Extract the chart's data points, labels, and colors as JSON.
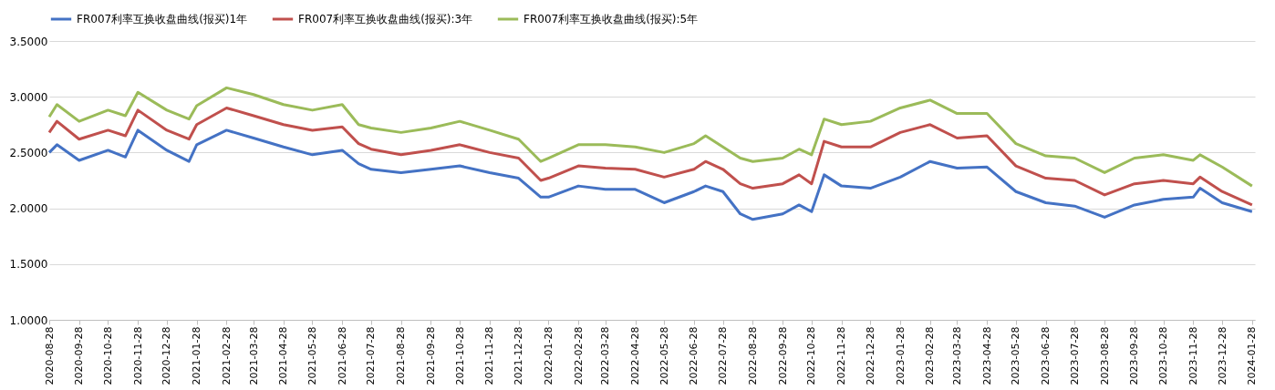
{
  "chart_data": {
    "type": "line",
    "x": [
      "2020-08-28",
      "2020-09-05",
      "2020-09-28",
      "2020-10-28",
      "2020-11-15",
      "2020-11-28",
      "2020-12-28",
      "2021-01-20",
      "2021-01-28",
      "2021-02-28",
      "2021-03-28",
      "2021-04-28",
      "2021-05-28",
      "2021-06-28",
      "2021-07-15",
      "2021-07-28",
      "2021-08-28",
      "2021-09-28",
      "2021-10-28",
      "2021-11-28",
      "2021-12-28",
      "2022-01-20",
      "2022-01-28",
      "2022-02-28",
      "2022-03-28",
      "2022-04-28",
      "2022-05-28",
      "2022-06-28",
      "2022-07-10",
      "2022-07-28",
      "2022-08-15",
      "2022-08-28",
      "2022-09-28",
      "2022-10-15",
      "2022-10-28",
      "2022-11-10",
      "2022-11-28",
      "2022-12-28",
      "2023-01-28",
      "2023-02-28",
      "2023-03-28",
      "2023-04-28",
      "2023-05-28",
      "2023-06-28",
      "2023-07-28",
      "2023-08-28",
      "2023-09-28",
      "2023-10-28",
      "2023-11-28",
      "2023-12-05",
      "2023-12-28",
      "2024-01-28"
    ],
    "series": [
      {
        "name": "FR007利率互换收盘曲线(报买)1年",
        "color": "#4472c4",
        "values": [
          2.5,
          2.57,
          2.43,
          2.52,
          2.46,
          2.7,
          2.52,
          2.42,
          2.57,
          2.7,
          2.63,
          2.55,
          2.48,
          2.52,
          2.4,
          2.35,
          2.32,
          2.35,
          2.38,
          2.32,
          2.27,
          2.1,
          2.1,
          2.2,
          2.17,
          2.17,
          2.05,
          2.15,
          2.2,
          2.15,
          1.95,
          1.9,
          1.95,
          2.03,
          1.97,
          2.3,
          2.2,
          2.18,
          2.28,
          2.42,
          2.36,
          2.37,
          2.15,
          2.05,
          2.02,
          1.92,
          2.03,
          2.08,
          2.1,
          2.18,
          2.05,
          1.97
        ]
      },
      {
        "name": "FR007利率互换收盘曲线(报买):3年",
        "color": "#c0504d",
        "values": [
          2.68,
          2.78,
          2.62,
          2.7,
          2.65,
          2.88,
          2.7,
          2.62,
          2.75,
          2.9,
          2.83,
          2.75,
          2.7,
          2.73,
          2.58,
          2.53,
          2.48,
          2.52,
          2.57,
          2.5,
          2.45,
          2.25,
          2.27,
          2.38,
          2.36,
          2.35,
          2.28,
          2.35,
          2.42,
          2.35,
          2.22,
          2.18,
          2.22,
          2.3,
          2.22,
          2.6,
          2.55,
          2.55,
          2.68,
          2.75,
          2.63,
          2.65,
          2.38,
          2.27,
          2.25,
          2.12,
          2.22,
          2.25,
          2.22,
          2.28,
          2.15,
          2.03
        ]
      },
      {
        "name": "FR007利率互换收盘曲线(报买):5年",
        "color": "#9bbb59",
        "values": [
          2.82,
          2.93,
          2.78,
          2.88,
          2.83,
          3.04,
          2.88,
          2.8,
          2.92,
          3.08,
          3.02,
          2.93,
          2.88,
          2.93,
          2.75,
          2.72,
          2.68,
          2.72,
          2.78,
          2.7,
          2.62,
          2.42,
          2.45,
          2.57,
          2.57,
          2.55,
          2.5,
          2.58,
          2.65,
          2.55,
          2.45,
          2.42,
          2.45,
          2.53,
          2.48,
          2.8,
          2.75,
          2.78,
          2.9,
          2.97,
          2.85,
          2.85,
          2.58,
          2.47,
          2.45,
          2.32,
          2.45,
          2.48,
          2.43,
          2.48,
          2.37,
          2.2
        ]
      }
    ],
    "xlim": [
      "2020-08-28",
      "2024-01-31"
    ],
    "xticks": [
      "2020-08-28",
      "2020-09-28",
      "2020-10-28",
      "2020-11-28",
      "2020-12-28",
      "2021-01-28",
      "2021-02-28",
      "2021-03-28",
      "2021-04-28",
      "2021-05-28",
      "2021-06-28",
      "2021-07-28",
      "2021-08-28",
      "2021-09-28",
      "2021-10-28",
      "2021-11-28",
      "2021-12-28",
      "2022-01-28",
      "2022-02-28",
      "2022-03-28",
      "2022-04-28",
      "2022-05-28",
      "2022-06-28",
      "2022-07-28",
      "2022-08-28",
      "2022-09-28",
      "2022-10-28",
      "2022-11-28",
      "2022-12-28",
      "2023-01-28",
      "2023-02-28",
      "2023-03-28",
      "2023-04-28",
      "2023-05-28",
      "2023-06-28",
      "2023-07-28",
      "2023-08-28",
      "2023-09-28",
      "2023-10-28",
      "2023-11-28",
      "2023-12-28",
      "2024-01-28"
    ],
    "ylim": [
      1.0,
      3.5
    ],
    "yticks": [
      {
        "value": 1.0,
        "label": "1.0000"
      },
      {
        "value": 1.5,
        "label": "1.5000"
      },
      {
        "value": 2.0,
        "label": "2.0000"
      },
      {
        "value": 2.5,
        "label": "2.5000"
      },
      {
        "value": 3.0,
        "label": "3.0000"
      },
      {
        "value": 3.5,
        "label": "3.5000"
      }
    ],
    "grid": "y",
    "legend": "top",
    "marker": "none",
    "line_style": "solid"
  }
}
